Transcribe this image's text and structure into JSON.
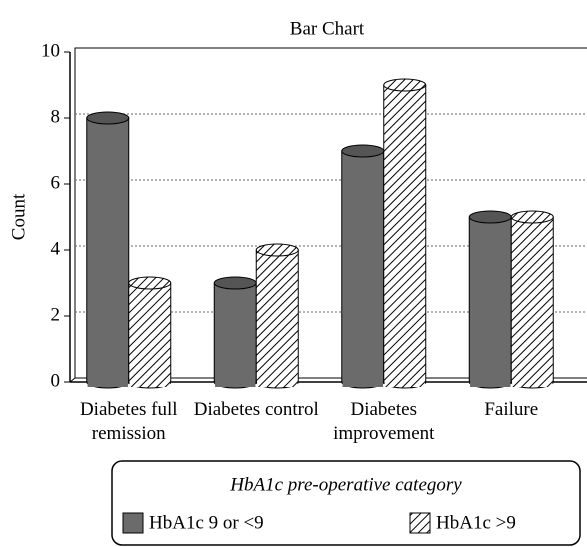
{
  "chart_data": {
    "type": "bar",
    "title": "Bar Chart",
    "ylabel": "Count",
    "categories": [
      "Diabetes full remission",
      "Diabetes control",
      "Diabetes improvement",
      "Failure"
    ],
    "series": [
      {
        "name": "HbA1c 9 or <9",
        "color": "#6b6b6b",
        "hatch": false,
        "values": [
          8,
          3,
          7,
          5
        ]
      },
      {
        "name": "HbA1c >9",
        "color": "#ffffff",
        "hatch": true,
        "values": [
          3,
          4,
          9,
          5
        ]
      }
    ],
    "ylim": [
      0,
      10
    ],
    "yticks": [
      0,
      2,
      4,
      6,
      8,
      10
    ],
    "grid": true,
    "legend_title": "HbA1c pre-operative category",
    "legend": "bottom"
  }
}
